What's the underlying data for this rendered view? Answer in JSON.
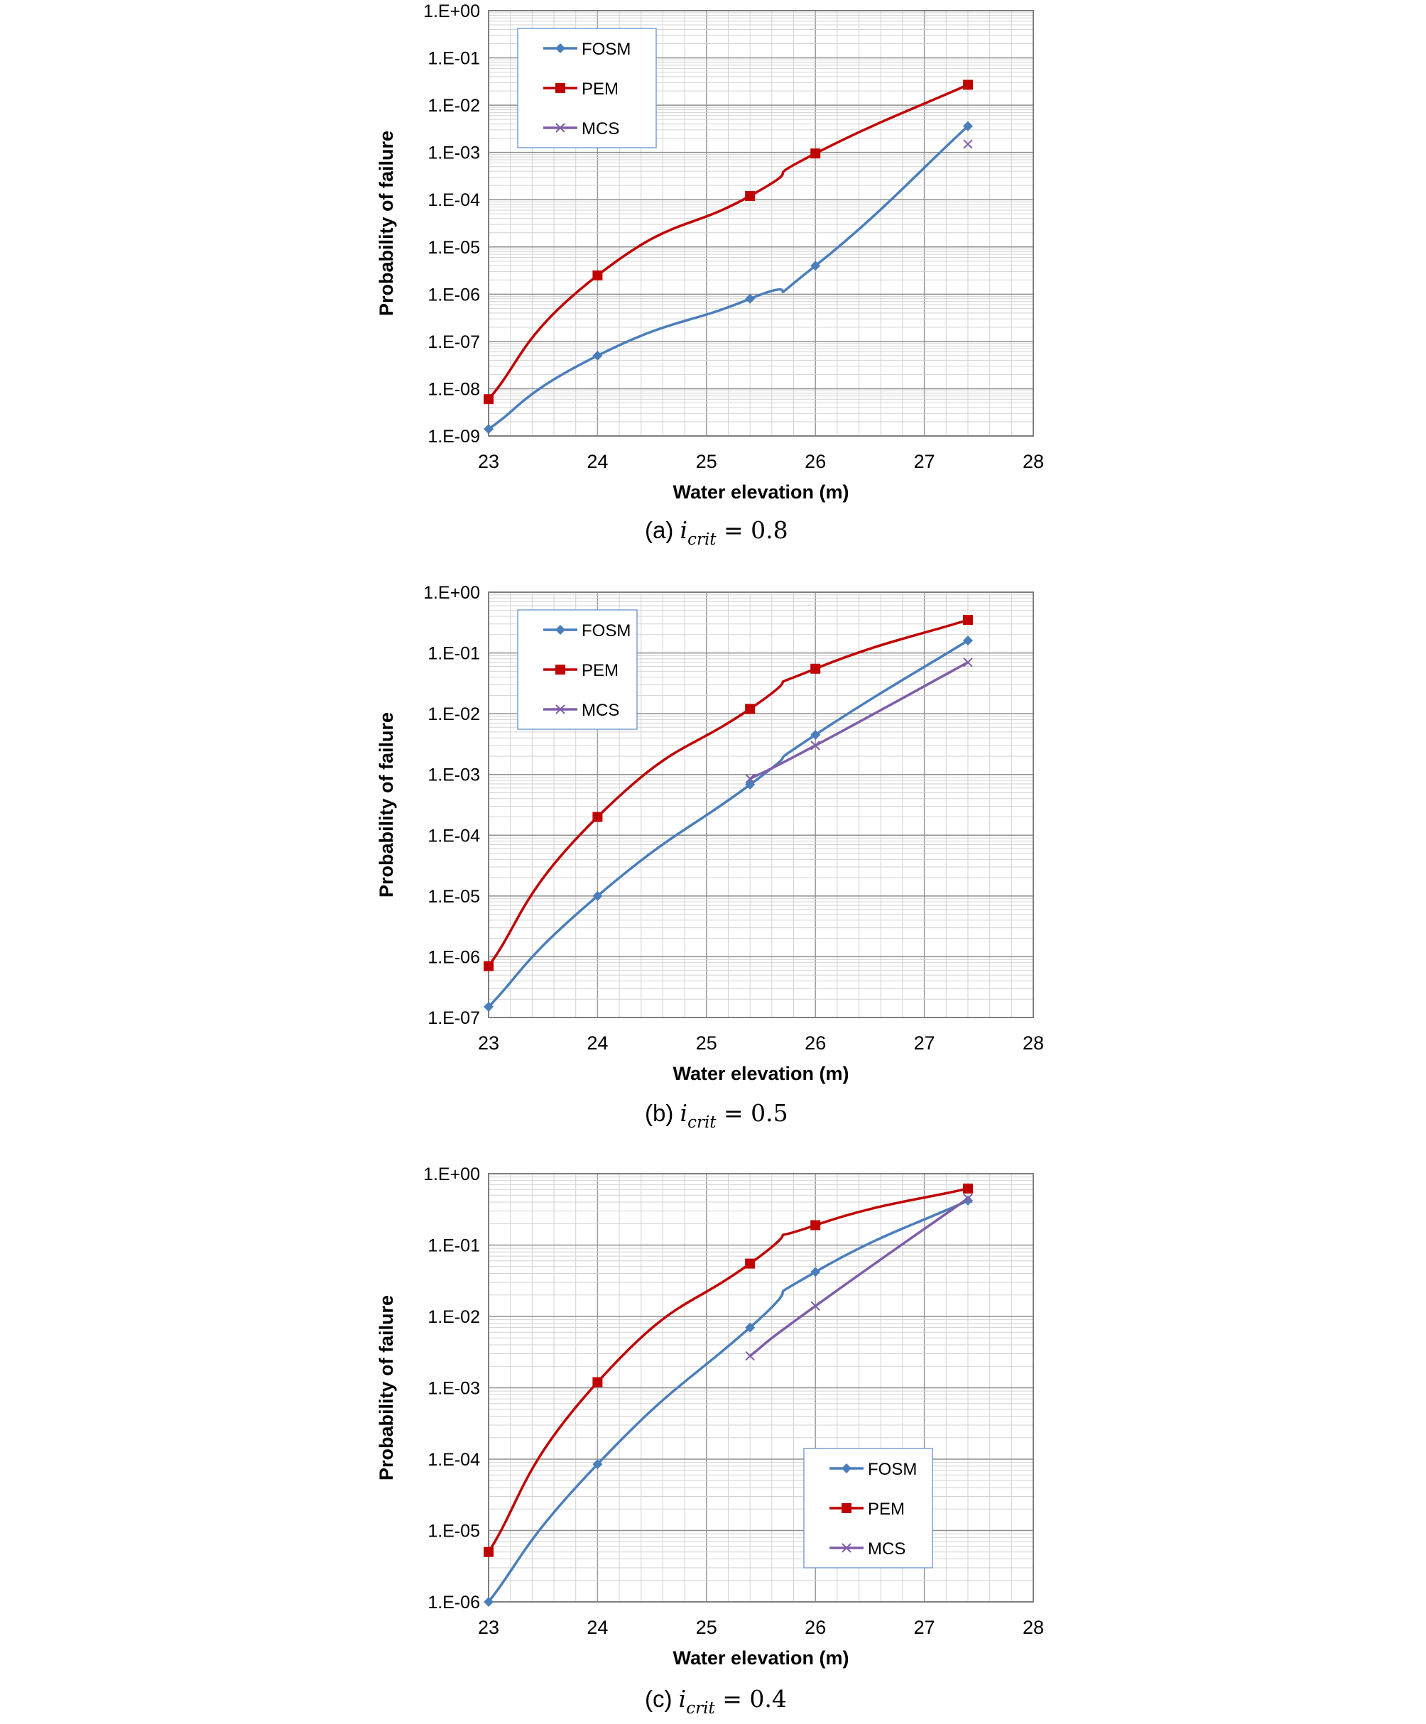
{
  "chart_data": [
    {
      "type": "line",
      "panel": "(a)",
      "caption_label": "(a)",
      "caption_math": {
        "sub": "crit",
        "value": "0.8"
      },
      "xlabel": "Water elevation (m)",
      "ylabel": "Probability of failure",
      "scale_y": "log",
      "xlim": [
        23,
        28
      ],
      "ylim": [
        1e-09,
        1
      ],
      "x_ticks": [
        "23",
        "24",
        "25",
        "26",
        "27",
        "28"
      ],
      "y_ticks": [
        "1.E-09",
        "1.E-08",
        "1.E-07",
        "1.E-06",
        "1.E-05",
        "1.E-04",
        "1.E-03",
        "1.E-02",
        "1.E-01",
        "1.E+00"
      ],
      "grid": true,
      "legend_position": "top-left",
      "series": [
        {
          "name": "FOSM",
          "color": "#4a7ebb",
          "marker": "diamond",
          "x": [
            23,
            24,
            25.4,
            26,
            27.4
          ],
          "y": [
            1.4e-09,
            5e-08,
            8e-07,
            4e-06,
            0.0036
          ]
        },
        {
          "name": "PEM",
          "color": "#c00000",
          "marker": "square",
          "x": [
            23,
            24,
            25.4,
            26,
            27.4
          ],
          "y": [
            6e-09,
            2.5e-06,
            0.00012,
            0.00095,
            0.027
          ]
        },
        {
          "name": "MCS",
          "color": "#7e5ea8",
          "marker": "x",
          "x": [
            27.4
          ],
          "y": [
            0.0015
          ]
        }
      ]
    },
    {
      "type": "line",
      "panel": "(b)",
      "caption_label": "(b)",
      "caption_math": {
        "sub": "crit",
        "value": "0.5"
      },
      "xlabel": "Water elevation (m)",
      "ylabel": "Probability of failure",
      "scale_y": "log",
      "xlim": [
        23,
        28
      ],
      "ylim": [
        1e-07,
        1
      ],
      "x_ticks": [
        "23",
        "24",
        "25",
        "26",
        "27",
        "28"
      ],
      "y_ticks": [
        "1.E-07",
        "1.E-06",
        "1.E-05",
        "1.E-04",
        "1.E-03",
        "1.E-02",
        "1.E-01",
        "1.E+00"
      ],
      "grid": true,
      "legend_position": "top-left",
      "series": [
        {
          "name": "FOSM",
          "color": "#4a7ebb",
          "marker": "diamond",
          "x": [
            23,
            24,
            25.4,
            26,
            27.4
          ],
          "y": [
            1.5e-07,
            1e-05,
            0.00068,
            0.0045,
            0.16
          ]
        },
        {
          "name": "PEM",
          "color": "#c00000",
          "marker": "square",
          "x": [
            23,
            24,
            25.4,
            26,
            27.4
          ],
          "y": [
            7e-07,
            0.0002,
            0.012,
            0.055,
            0.35
          ]
        },
        {
          "name": "MCS",
          "color": "#7e5ea8",
          "marker": "x",
          "x": [
            25.4,
            26,
            27.4
          ],
          "y": [
            0.00085,
            0.003,
            0.07
          ]
        }
      ]
    },
    {
      "type": "line",
      "panel": "(c)",
      "caption_label": "(c)",
      "caption_math": {
        "sub": "crit",
        "value": "0.4"
      },
      "xlabel": "Water elevation (m)",
      "ylabel": "Probability of failure",
      "scale_y": "log",
      "xlim": [
        23,
        28
      ],
      "ylim": [
        1e-06,
        1
      ],
      "x_ticks": [
        "23",
        "24",
        "25",
        "26",
        "27",
        "28"
      ],
      "y_ticks": [
        "1.E-06",
        "1.E-05",
        "1.E-04",
        "1.E-03",
        "1.E-02",
        "1.E-01",
        "1.E+00"
      ],
      "grid": true,
      "legend_position": "bottom-right",
      "series": [
        {
          "name": "FOSM",
          "color": "#4a7ebb",
          "marker": "diamond",
          "x": [
            23,
            24,
            25.4,
            26,
            27.4
          ],
          "y": [
            1e-06,
            8.5e-05,
            0.007,
            0.042,
            0.42
          ]
        },
        {
          "name": "PEM",
          "color": "#c00000",
          "marker": "square",
          "x": [
            23,
            24,
            25.4,
            26,
            27.4
          ],
          "y": [
            5e-06,
            0.0012,
            0.055,
            0.19,
            0.62
          ]
        },
        {
          "name": "MCS",
          "color": "#7e5ea8",
          "marker": "x",
          "x": [
            25.4,
            26,
            27.4
          ],
          "y": [
            0.0028,
            0.014,
            0.45
          ]
        }
      ]
    }
  ]
}
